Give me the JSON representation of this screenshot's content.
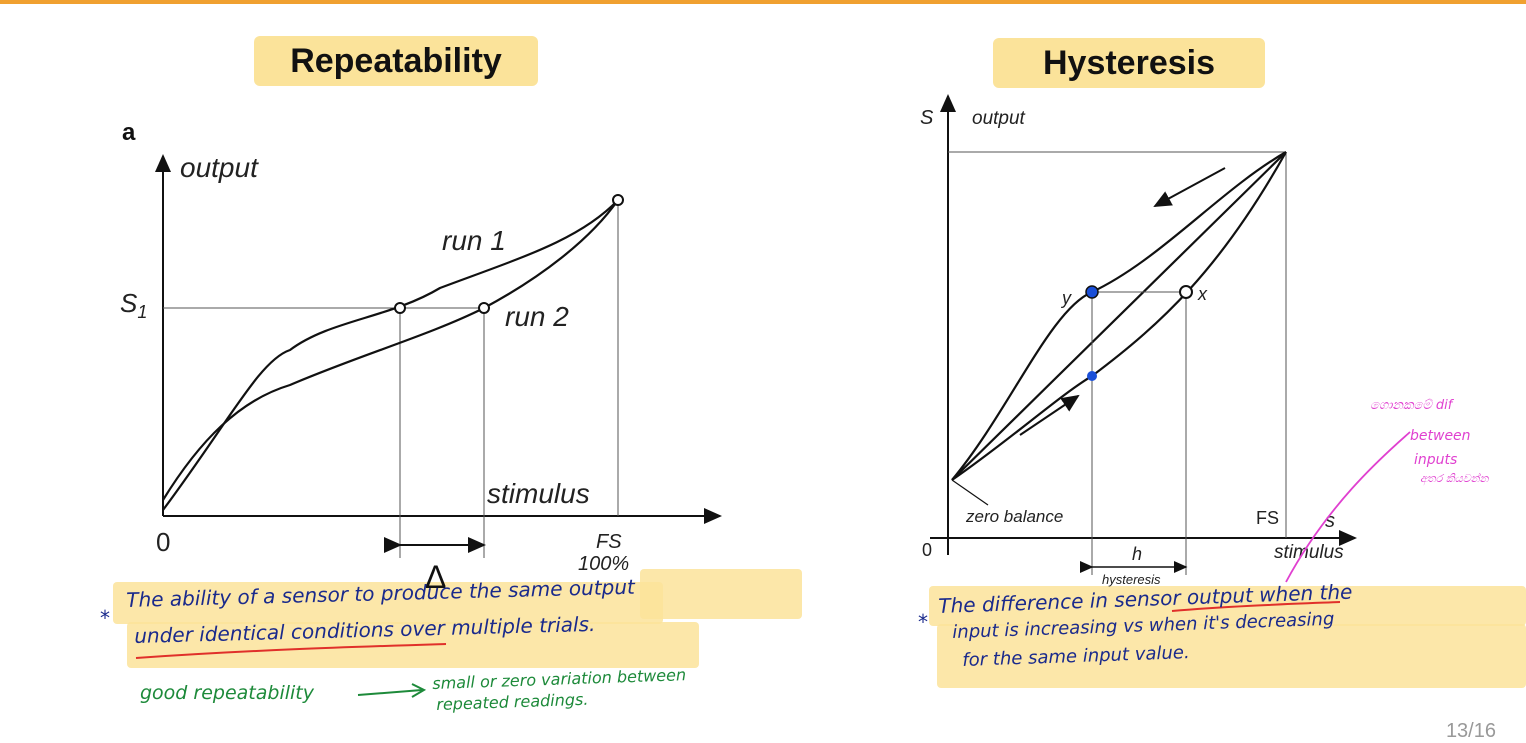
{
  "left": {
    "title": "Repeatability",
    "panel_label": "a",
    "y_axis_label": "output",
    "x_axis_label": "stimulus",
    "s1_label": "S",
    "s1_sub": "1",
    "origin_label": "0",
    "fs_label": "FS",
    "fs_percent": "100%",
    "run1_label": "run 1",
    "run2_label": "run 2",
    "delta_label": "Δ",
    "note_line1": "The ability of a sensor to produce the same output",
    "note_line2": "under identical conditions over multiple trials.",
    "good_label": "good repeatability",
    "good_result_1": "small or zero variation between",
    "good_result_2": "repeated readings."
  },
  "right": {
    "title": "Hysteresis",
    "y_axis_symbol": "S",
    "y_axis_label": "output",
    "x_axis_symbol": "s",
    "x_axis_label": "stimulus",
    "origin_label": "0",
    "fs_label": "FS",
    "zero_balance_label": "zero balance",
    "y_point_label": "y",
    "x_point_label": "x",
    "h_label": "h",
    "hysteresis_label": "hysteresis",
    "note_line1": "The difference in sensor output when the",
    "note_line2": "input is increasing vs when it's decreasing",
    "note_line3": "for the same input value.",
    "side_note_1": "ගොනකමේ dif",
    "side_note_2": "between",
    "side_note_3": "inputs",
    "side_note_4": "අතර කියවන්න"
  },
  "bullet": "*",
  "page_number": "13/16",
  "colors": {
    "accent_bar": "#f0a030",
    "highlight": "#fbe39a",
    "ink_blue": "#1a2a8c",
    "ink_green": "#1d8a3a",
    "ink_red": "#e0302a",
    "ink_pink": "#e040d0",
    "point_blue": "#1a4fd8"
  }
}
